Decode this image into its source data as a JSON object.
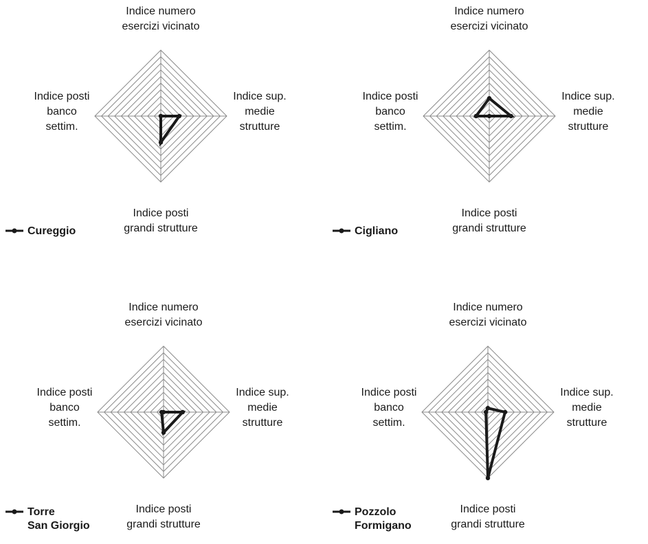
{
  "colors": {
    "grid": "#8a8a8a",
    "series": "#1a1a1a",
    "text": "#1a1a1a"
  },
  "chart_data": [
    {
      "type": "radar",
      "series_name": [
        "Cureggio"
      ],
      "axes": [
        {
          "label": [
            "Indice numero",
            "esercizi vicinato"
          ]
        },
        {
          "label": [
            "Indice sup.",
            "medie",
            "strutture"
          ]
        },
        {
          "label": [
            "Indice posti",
            "grandi strutture"
          ]
        },
        {
          "label": [
            "Indice posti",
            "banco",
            "settim."
          ]
        }
      ],
      "rings": 10,
      "values": [
        0.0,
        0.28,
        0.4,
        0.0
      ]
    },
    {
      "type": "radar",
      "series_name": [
        "Cigliano"
      ],
      "axes": [
        {
          "label": [
            "Indice numero",
            "esercizi vicinato"
          ]
        },
        {
          "label": [
            "Indice sup.",
            "medie",
            "strutture"
          ]
        },
        {
          "label": [
            "Indice posti",
            "grandi strutture"
          ]
        },
        {
          "label": [
            "Indice posti",
            "banco",
            "settim."
          ]
        }
      ],
      "rings": 10,
      "values": [
        0.27,
        0.33,
        0.0,
        0.2
      ]
    },
    {
      "type": "radar",
      "series_name": [
        "Torre",
        "San Giorgio"
      ],
      "axes": [
        {
          "label": [
            "Indice numero",
            "esercizi vicinato"
          ]
        },
        {
          "label": [
            "Indice sup.",
            "medie",
            "strutture"
          ]
        },
        {
          "label": [
            "Indice posti",
            "grandi strutture"
          ]
        },
        {
          "label": [
            "Indice posti",
            "banco",
            "settim."
          ]
        }
      ],
      "rings": 10,
      "values": [
        0.0,
        0.29,
        0.31,
        0.03
      ]
    },
    {
      "type": "radar",
      "series_name": [
        "Pozzolo",
        "Formigano"
      ],
      "axes": [
        {
          "label": [
            "Indice numero",
            "esercizi vicinato"
          ]
        },
        {
          "label": [
            "Indice sup.",
            "medie",
            "strutture"
          ]
        },
        {
          "label": [
            "Indice posti",
            "grandi strutture"
          ]
        },
        {
          "label": [
            "Indice posti",
            "banco",
            "settim."
          ]
        }
      ],
      "rings": 10,
      "values": [
        0.06,
        0.26,
        1.0,
        0.03
      ]
    }
  ]
}
